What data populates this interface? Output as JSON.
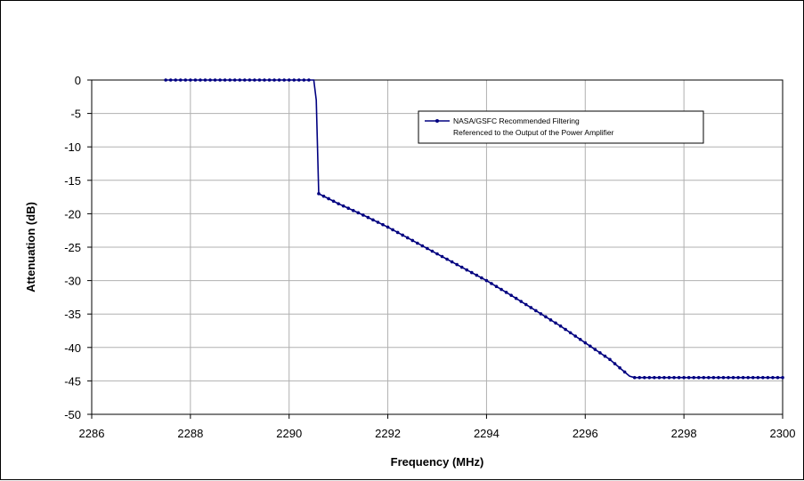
{
  "chart_data": {
    "type": "line",
    "title": "",
    "xlabel": "Frequency (MHz)",
    "ylabel": "Attenuation (dB)",
    "xlim": [
      2286,
      2300
    ],
    "ylim": [
      -50,
      0
    ],
    "x_ticks": [
      2286,
      2288,
      2290,
      2292,
      2294,
      2296,
      2298,
      2300
    ],
    "y_ticks": [
      0,
      -5,
      -10,
      -15,
      -20,
      -25,
      -30,
      -35,
      -40,
      -45,
      -50
    ],
    "x_tick_labels": [
      "2286",
      "2288",
      "2290",
      "2292",
      "2294",
      "2296",
      "2298",
      "2300"
    ],
    "y_tick_labels": [
      "0",
      "-5",
      "-10",
      "-15",
      "-20",
      "-25",
      "-30",
      "-35",
      "-40",
      "-45",
      "-50"
    ],
    "grid": true,
    "legend_position": "upper-right",
    "series": [
      {
        "name": "NASA/GSFC Recommended Filtering Referenced to the Output of the Power Amplifier",
        "legend_lines": [
          "NASA/GSFC Recommended Filtering",
          "Referenced to the Output of the Power Amplifier"
        ],
        "color": "#000080",
        "marker": "dot",
        "x": [
          2287.5,
          2288.0,
          2288.5,
          2289.0,
          2289.5,
          2290.0,
          2290.5,
          2290.55,
          2290.6,
          2291.0,
          2291.5,
          2292.0,
          2292.5,
          2293.0,
          2293.5,
          2294.0,
          2294.5,
          2295.0,
          2295.5,
          2296.0,
          2296.5,
          2296.9,
          2297.0,
          2297.5,
          2298.0,
          2298.5,
          2299.0,
          2299.5,
          2300.0
        ],
        "y": [
          0,
          0,
          0,
          0,
          0,
          0,
          0,
          -3,
          -17,
          -18.5,
          -20.2,
          -22,
          -24,
          -26,
          -28,
          -30,
          -32.2,
          -34.5,
          -36.8,
          -39.3,
          -41.8,
          -44.3,
          -44.5,
          -44.5,
          -44.5,
          -44.5,
          -44.5,
          -44.5,
          -44.5
        ]
      }
    ]
  }
}
